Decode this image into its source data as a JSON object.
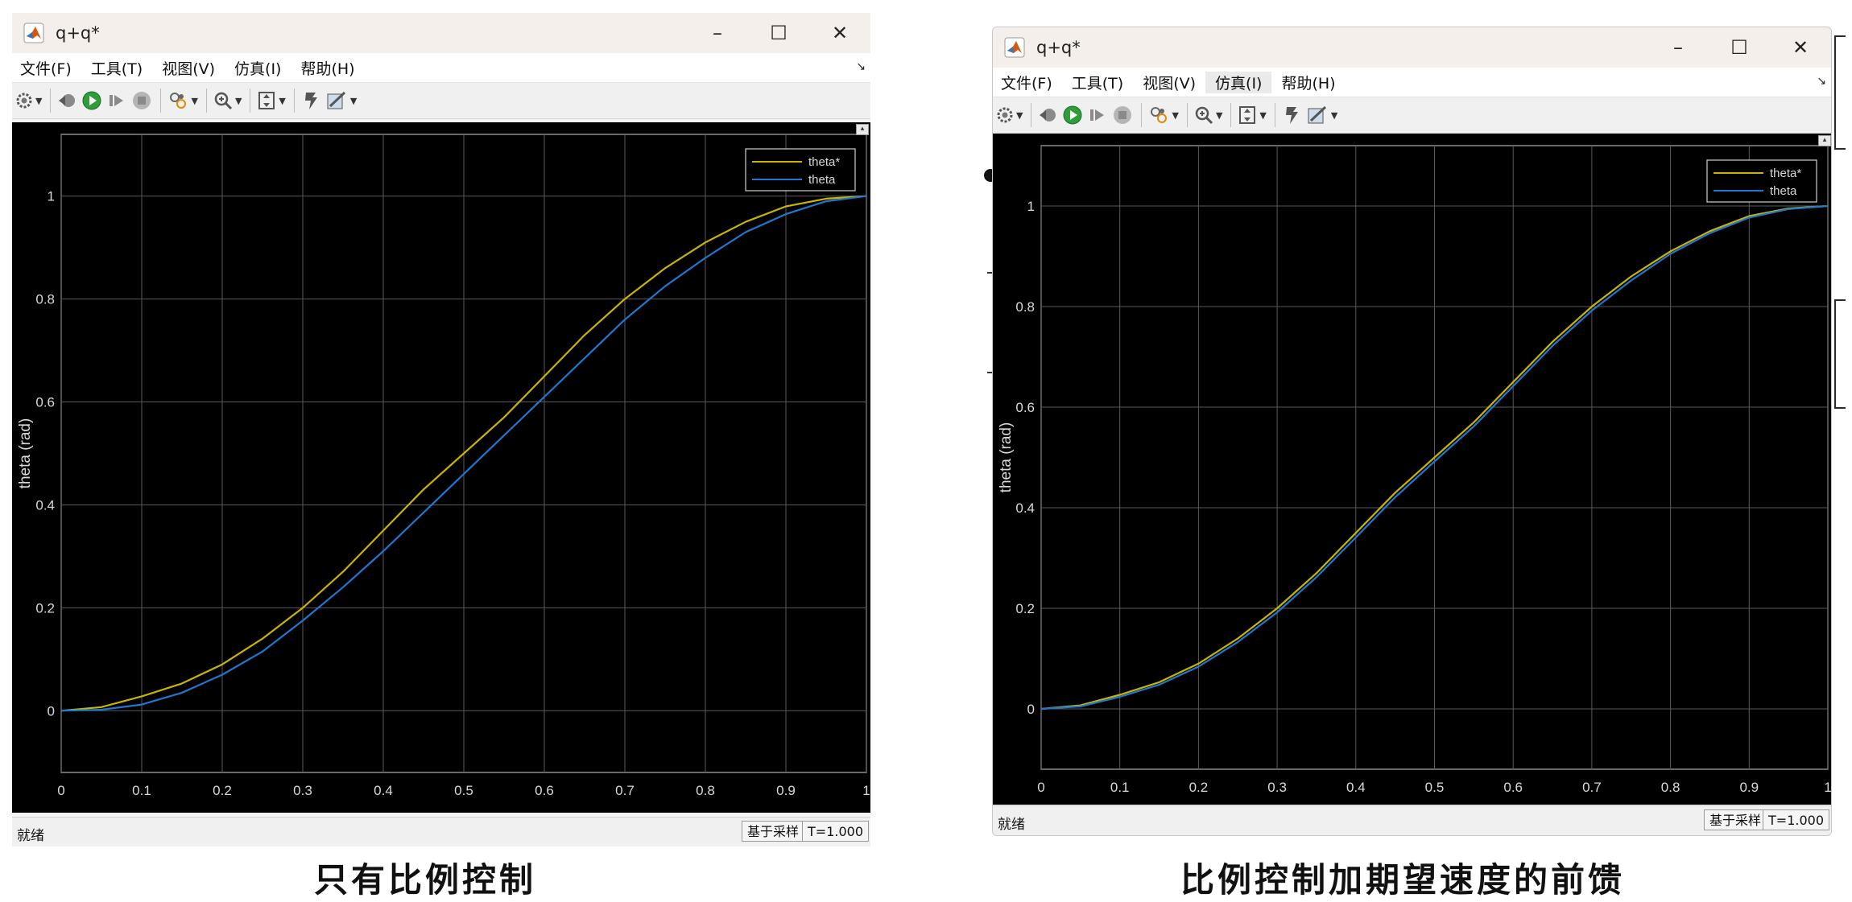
{
  "windows": [
    {
      "title": "q+q*",
      "menu": [
        "文件(F)",
        "工具(T)",
        "视图(V)",
        "仿真(I)",
        "帮助(H)"
      ],
      "status": {
        "left": "就绪",
        "mode": "基于采样",
        "time": "T=1.000"
      },
      "caption": "只有比例控制"
    },
    {
      "title": "q+q*",
      "menu": [
        "文件(F)",
        "工具(T)",
        "视图(V)",
        "仿真(I)",
        "帮助(H)"
      ],
      "status": {
        "left": "就绪",
        "mode": "基于采样",
        "time": "T=1.000"
      },
      "caption": "比例控制加期望速度的前馈"
    }
  ],
  "window_controls": [
    "–",
    "☐",
    "✕"
  ],
  "toolbar_icons": [
    "gear-icon",
    "step-back-icon",
    "run-icon",
    "step-forward-icon",
    "stop-icon",
    "highlight-icon",
    "zoom-icon",
    "autoscale-icon",
    "signal-icon",
    "style-icon"
  ],
  "colors": {
    "plot_bg": "#000000",
    "grid": "#5a5a5a",
    "axis_text": "#d9d9d9",
    "theta_star": "#c9b400",
    "theta": "#1f77d0"
  },
  "chart_data": [
    {
      "type": "line",
      "ylabel": "theta (rad)",
      "xlim": [
        0,
        1
      ],
      "ylim": [
        -0.12,
        1.12
      ],
      "x_ticks": [
        "0",
        "0.1",
        "0.2",
        "0.3",
        "0.4",
        "0.5",
        "0.6",
        "0.7",
        "0.8",
        "0.9",
        "1"
      ],
      "y_ticks": [
        "0",
        "0.2",
        "0.4",
        "0.6",
        "0.8",
        "1"
      ],
      "grid": true,
      "legend_position": "top-right",
      "x": [
        0,
        0.05,
        0.1,
        0.15,
        0.2,
        0.25,
        0.3,
        0.35,
        0.4,
        0.45,
        0.5,
        0.55,
        0.6,
        0.65,
        0.7,
        0.75,
        0.8,
        0.85,
        0.9,
        0.95,
        1.0
      ],
      "series": [
        {
          "name": "theta*",
          "values": [
            0,
            0.007,
            0.028,
            0.053,
            0.09,
            0.14,
            0.2,
            0.27,
            0.35,
            0.43,
            0.5,
            0.57,
            0.65,
            0.73,
            0.8,
            0.86,
            0.91,
            0.95,
            0.98,
            0.995,
            1.0
          ]
        },
        {
          "name": "theta",
          "values": [
            0,
            0.002,
            0.012,
            0.035,
            0.07,
            0.115,
            0.175,
            0.24,
            0.31,
            0.385,
            0.46,
            0.535,
            0.61,
            0.685,
            0.76,
            0.825,
            0.88,
            0.93,
            0.965,
            0.99,
            1.0
          ]
        }
      ]
    },
    {
      "type": "line",
      "ylabel": "theta (rad)",
      "xlim": [
        0,
        1
      ],
      "ylim": [
        -0.12,
        1.12
      ],
      "x_ticks": [
        "0",
        "0.1",
        "0.2",
        "0.3",
        "0.4",
        "0.5",
        "0.6",
        "0.7",
        "0.8",
        "0.9",
        "1"
      ],
      "y_ticks": [
        "0",
        "0.2",
        "0.4",
        "0.6",
        "0.8",
        "1"
      ],
      "grid": true,
      "legend_position": "top-right",
      "x": [
        0,
        0.05,
        0.1,
        0.15,
        0.2,
        0.25,
        0.3,
        0.35,
        0.4,
        0.45,
        0.5,
        0.55,
        0.6,
        0.65,
        0.7,
        0.75,
        0.8,
        0.85,
        0.9,
        0.95,
        1.0
      ],
      "series": [
        {
          "name": "theta*",
          "values": [
            0,
            0.007,
            0.028,
            0.053,
            0.09,
            0.14,
            0.2,
            0.27,
            0.35,
            0.43,
            0.5,
            0.57,
            0.65,
            0.73,
            0.8,
            0.86,
            0.91,
            0.95,
            0.98,
            0.995,
            1.0
          ]
        },
        {
          "name": "theta",
          "values": [
            0,
            0.005,
            0.024,
            0.048,
            0.084,
            0.133,
            0.192,
            0.262,
            0.341,
            0.421,
            0.492,
            0.562,
            0.642,
            0.722,
            0.792,
            0.852,
            0.905,
            0.946,
            0.977,
            0.994,
            1.0
          ]
        }
      ]
    }
  ]
}
